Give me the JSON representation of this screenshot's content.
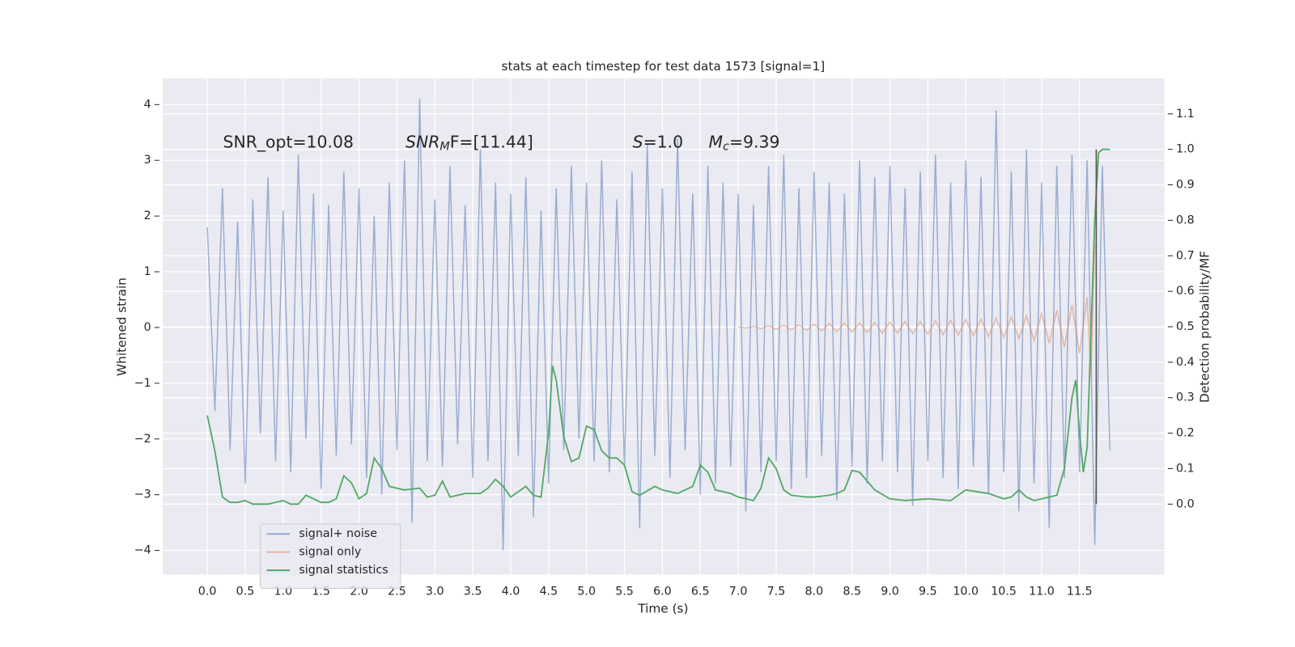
{
  "chart_data": {
    "type": "line",
    "title": "stats at each timestep for test data 1573 [signal=1]",
    "xlabel": "Time (s)",
    "ylabel": "Whitened strain",
    "y2label": "Detection probability/MF",
    "xlim": [
      -0.588,
      12.62
    ],
    "ylim": [
      -4.43,
      4.47
    ],
    "y2lim": [
      -0.198,
      1.2
    ],
    "xticks": [
      {
        "value": 0,
        "label": "0.0"
      },
      0.5,
      {
        "value": 1,
        "label": "1.0"
      },
      1.5,
      {
        "value": 2,
        "label": "2.0"
      },
      2.5,
      {
        "value": 3,
        "label": "3.0"
      },
      3.5,
      {
        "value": 4,
        "label": "4.0"
      },
      4.5,
      {
        "value": 5,
        "label": "5.0"
      },
      5.5,
      {
        "value": 6,
        "label": "6.0"
      },
      6.5,
      {
        "value": 7,
        "label": "7.0"
      },
      7.5,
      {
        "value": 8,
        "label": "8.0"
      },
      8.5,
      {
        "value": 9,
        "label": "9.0"
      },
      9.5,
      {
        "value": 10,
        "label": "10.0"
      },
      10.5,
      {
        "value": 11,
        "label": "11.0"
      },
      11.5
    ],
    "yticks": [
      {
        "value": -4,
        "label": "−4"
      },
      {
        "value": -3,
        "label": "−3"
      },
      {
        "value": -2,
        "label": "−2"
      },
      {
        "value": -1,
        "label": "−1"
      },
      0,
      1,
      2,
      3,
      4
    ],
    "y2ticks": [
      {
        "value": 0,
        "label": "0.0"
      },
      0.1,
      0.2,
      0.3,
      0.4,
      0.5,
      0.6,
      0.7,
      0.8,
      0.9,
      {
        "value": 1,
        "label": "1.0"
      },
      1.1
    ],
    "grid": true,
    "legend": "lower left",
    "annotations": [
      {
        "text": "SNR_opt=10.08"
      },
      {
        "text": "SNR",
        "sub": "M",
        "after": "F=[11.44]"
      },
      {
        "text": "S",
        "after": "=1.0"
      },
      {
        "text": "M",
        "sub": "c",
        "after": "=9.39"
      }
    ],
    "vline": {
      "x": 11.72,
      "y2min": 0,
      "y2max": 1,
      "color": "#555555"
    },
    "series": [
      {
        "name": "signal+ noise",
        "color": "#4c72b0",
        "alpha": 0.5,
        "x": [
          0.0,
          0.1,
          0.2,
          0.3,
          0.4,
          0.5,
          0.6,
          0.7,
          0.8,
          0.9,
          1.0,
          1.1,
          1.2,
          1.3,
          1.4,
          1.5,
          1.6,
          1.7,
          1.8,
          1.9,
          2.0,
          2.1,
          2.2,
          2.3,
          2.4,
          2.5,
          2.6,
          2.7,
          2.8,
          2.9,
          3.0,
          3.1,
          3.2,
          3.3,
          3.4,
          3.5,
          3.6,
          3.7,
          3.8,
          3.9,
          4.0,
          4.1,
          4.2,
          4.3,
          4.4,
          4.5,
          4.6,
          4.7,
          4.8,
          4.9,
          5.0,
          5.1,
          5.2,
          5.3,
          5.4,
          5.5,
          5.6,
          5.7,
          5.8,
          5.9,
          6.0,
          6.1,
          6.2,
          6.3,
          6.4,
          6.5,
          6.6,
          6.7,
          6.8,
          6.9,
          7.0,
          7.1,
          7.2,
          7.3,
          7.4,
          7.5,
          7.6,
          7.7,
          7.8,
          7.9,
          8.0,
          8.1,
          8.2,
          8.3,
          8.4,
          8.5,
          8.6,
          8.7,
          8.8,
          8.9,
          9.0,
          9.1,
          9.2,
          9.3,
          9.4,
          9.5,
          9.6,
          9.7,
          9.8,
          9.9,
          10.0,
          10.1,
          10.2,
          10.3,
          10.4,
          10.5,
          10.6,
          10.7,
          10.8,
          10.9,
          11.0,
          11.1,
          11.2,
          11.3,
          11.4,
          11.5,
          11.6,
          11.7,
          11.8,
          11.9
        ],
        "values": [
          1.8,
          -1.5,
          2.5,
          -2.2,
          1.9,
          -2.8,
          2.3,
          -1.9,
          2.7,
          -2.4,
          2.1,
          -2.6,
          3.1,
          -2.0,
          2.4,
          -2.9,
          2.2,
          -2.3,
          2.8,
          -2.1,
          2.5,
          -2.7,
          2.0,
          -3.0,
          2.6,
          -2.2,
          3.0,
          -3.5,
          4.1,
          -2.4,
          2.3,
          -2.5,
          2.9,
          -2.1,
          2.2,
          -2.7,
          3.2,
          -2.4,
          2.6,
          -4.0,
          2.4,
          -2.3,
          2.7,
          -3.4,
          2.1,
          -2.8,
          2.5,
          -2.2,
          2.9,
          -2.0,
          2.6,
          -2.4,
          3.0,
          -2.6,
          2.3,
          -2.5,
          2.8,
          -3.6,
          3.3,
          -2.3,
          2.5,
          -2.7,
          3.4,
          -2.2,
          2.4,
          -3.0,
          2.9,
          -2.8,
          2.6,
          -2.5,
          2.4,
          -3.3,
          2.2,
          -2.6,
          2.9,
          -2.4,
          3.1,
          -2.9,
          2.5,
          -2.7,
          2.8,
          -2.3,
          2.6,
          -3.1,
          2.4,
          -2.5,
          3.0,
          -2.8,
          2.7,
          -2.4,
          2.9,
          -2.6,
          2.5,
          -3.2,
          2.8,
          -2.4,
          3.1,
          -2.7,
          2.6,
          -2.9,
          3.0,
          -2.5,
          2.7,
          -3.0,
          3.9,
          -2.6,
          2.8,
          -3.3,
          3.2,
          -2.8,
          2.6,
          -3.6,
          2.9,
          -2.7,
          3.1,
          -2.6,
          3.0,
          -3.9,
          2.9,
          -2.2
        ]
      },
      {
        "name": "signal only",
        "color": "#dd8452",
        "alpha": 0.5,
        "x": [
          7.0,
          7.1,
          7.2,
          7.3,
          7.4,
          7.5,
          7.6,
          7.7,
          7.8,
          7.9,
          8.0,
          8.1,
          8.2,
          8.3,
          8.4,
          8.5,
          8.6,
          8.7,
          8.8,
          8.9,
          9.0,
          9.1,
          9.2,
          9.3,
          9.4,
          9.5,
          9.6,
          9.7,
          9.8,
          9.9,
          10.0,
          10.1,
          10.2,
          10.3,
          10.4,
          10.5,
          10.6,
          10.7,
          10.8,
          10.9,
          11.0,
          11.1,
          11.2,
          11.3,
          11.4,
          11.5,
          11.6,
          11.65,
          11.7
        ],
        "values": [
          0.01,
          -0.01,
          0.02,
          -0.02,
          0.03,
          -0.03,
          0.04,
          -0.04,
          0.05,
          -0.05,
          0.06,
          -0.06,
          0.07,
          -0.07,
          0.08,
          -0.08,
          0.08,
          -0.09,
          0.09,
          -0.1,
          0.1,
          -0.1,
          0.11,
          -0.11,
          0.11,
          -0.12,
          0.12,
          -0.13,
          0.13,
          -0.13,
          0.14,
          -0.15,
          0.15,
          -0.16,
          0.17,
          -0.18,
          0.19,
          -0.2,
          0.21,
          -0.23,
          0.25,
          -0.28,
          0.31,
          -0.35,
          0.4,
          -0.46,
          0.55,
          -0.9,
          1.5
        ]
      },
      {
        "name": "signal statistics",
        "color": "#55a868",
        "axis": "y2",
        "x": [
          0.0,
          0.1,
          0.2,
          0.3,
          0.4,
          0.5,
          0.6,
          0.8,
          1.0,
          1.1,
          1.2,
          1.3,
          1.5,
          1.6,
          1.7,
          1.8,
          1.9,
          2.0,
          2.1,
          2.2,
          2.3,
          2.4,
          2.6,
          2.8,
          2.9,
          3.0,
          3.1,
          3.2,
          3.4,
          3.6,
          3.7,
          3.8,
          3.9,
          4.0,
          4.1,
          4.2,
          4.3,
          4.4,
          4.5,
          4.55,
          4.6,
          4.7,
          4.8,
          4.9,
          5.0,
          5.1,
          5.2,
          5.3,
          5.4,
          5.5,
          5.6,
          5.7,
          5.9,
          6.0,
          6.2,
          6.4,
          6.5,
          6.6,
          6.7,
          6.9,
          7.0,
          7.1,
          7.2,
          7.3,
          7.4,
          7.5,
          7.6,
          7.7,
          7.9,
          8.0,
          8.2,
          8.3,
          8.4,
          8.5,
          8.6,
          8.8,
          9.0,
          9.2,
          9.5,
          9.8,
          10.0,
          10.3,
          10.5,
          10.6,
          10.7,
          10.8,
          10.9,
          11.0,
          11.2,
          11.3,
          11.4,
          11.45,
          11.5,
          11.55,
          11.6,
          11.7,
          11.75,
          11.8,
          11.9
        ],
        "values": [
          0.25,
          0.15,
          0.02,
          0.005,
          0.005,
          0.01,
          0.0,
          0.0,
          0.01,
          0.0,
          0.0,
          0.025,
          0.005,
          0.005,
          0.015,
          0.08,
          0.06,
          0.015,
          0.03,
          0.13,
          0.1,
          0.05,
          0.04,
          0.045,
          0.02,
          0.025,
          0.065,
          0.02,
          0.03,
          0.03,
          0.045,
          0.07,
          0.05,
          0.02,
          0.035,
          0.05,
          0.025,
          0.02,
          0.2,
          0.39,
          0.35,
          0.19,
          0.12,
          0.13,
          0.22,
          0.21,
          0.15,
          0.13,
          0.13,
          0.11,
          0.035,
          0.025,
          0.05,
          0.04,
          0.03,
          0.05,
          0.11,
          0.09,
          0.04,
          0.03,
          0.02,
          0.015,
          0.01,
          0.045,
          0.13,
          0.1,
          0.04,
          0.025,
          0.02,
          0.02,
          0.025,
          0.03,
          0.04,
          0.095,
          0.09,
          0.04,
          0.015,
          0.01,
          0.015,
          0.01,
          0.04,
          0.03,
          0.015,
          0.02,
          0.04,
          0.02,
          0.01,
          0.015,
          0.025,
          0.1,
          0.3,
          0.35,
          0.2,
          0.09,
          0.16,
          0.8,
          0.99,
          1.0,
          1.0
        ]
      }
    ]
  }
}
